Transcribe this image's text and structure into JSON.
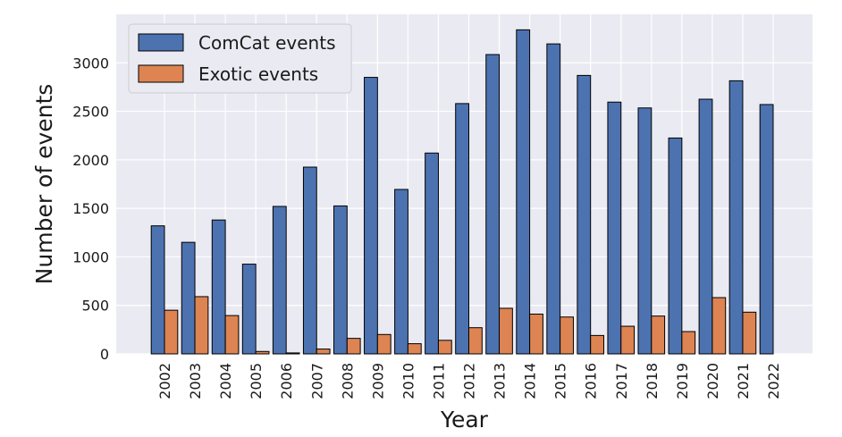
{
  "chart_data": {
    "type": "bar",
    "xlabel": "Year",
    "ylabel": "Number of events",
    "ylim": [
      0,
      3500
    ],
    "yticks": [
      0,
      500,
      1000,
      1500,
      2000,
      2500,
      3000
    ],
    "grid": true,
    "legend_position": "top-left",
    "categories": [
      "2002",
      "2003",
      "2004",
      "2005",
      "2006",
      "2007",
      "2008",
      "2009",
      "2010",
      "2011",
      "2012",
      "2013",
      "2014",
      "2015",
      "2016",
      "2017",
      "2018",
      "2019",
      "2020",
      "2021",
      "2022"
    ],
    "series": [
      {
        "name": "ComCat events",
        "color": "#4c72b0",
        "values": [
          1320,
          1150,
          1380,
          925,
          1520,
          1925,
          1525,
          2850,
          1695,
          2070,
          2580,
          3085,
          3340,
          3195,
          2870,
          2595,
          2535,
          2225,
          2625,
          2815,
          2570
        ]
      },
      {
        "name": "Exotic events",
        "color": "#dd8452",
        "values": [
          450,
          590,
          395,
          25,
          10,
          50,
          160,
          200,
          105,
          140,
          270,
          470,
          410,
          380,
          190,
          285,
          390,
          230,
          580,
          430,
          0
        ]
      }
    ]
  }
}
